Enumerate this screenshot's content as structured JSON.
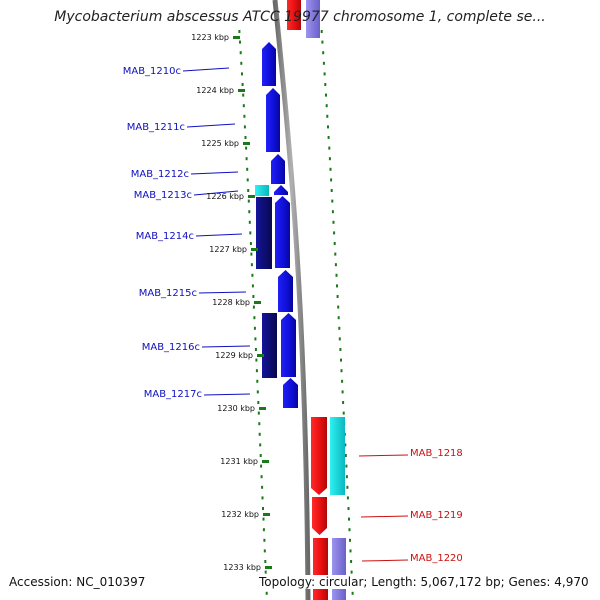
{
  "title": "Mycobacterium abscessus ATCC 19977 chromosome 1, complete se...",
  "footer": {
    "accession": "Accession: NC_010397",
    "stats": "Topology: circular; Length: 5,067,172 bp; Genes: 4,970"
  },
  "colors": {
    "reverse_cds": "#1010e0",
    "reverse_dark": "#0c0c70",
    "forward_cds": "#ee1111",
    "cyan": "#10e0e0",
    "lavender": "#8a80e0",
    "backbone": "#888888",
    "tick": "#1a7a1a",
    "reverse_label": "#1010c0",
    "forward_label": "#cc1010"
  },
  "ticks": [
    "1223 kbp",
    "1224 kbp",
    "1225 kbp",
    "1226 kbp",
    "1227 kbp",
    "1228 kbp",
    "1229 kbp",
    "1230 kbp",
    "1231 kbp",
    "1232 kbp",
    "1233 kbp"
  ],
  "genes": [
    {
      "name": "MAB_1210c",
      "strand": "reverse"
    },
    {
      "name": "MAB_1211c",
      "strand": "reverse"
    },
    {
      "name": "MAB_1212c",
      "strand": "reverse"
    },
    {
      "name": "MAB_1213c",
      "strand": "reverse"
    },
    {
      "name": "MAB_1214c",
      "strand": "reverse"
    },
    {
      "name": "MAB_1215c",
      "strand": "reverse"
    },
    {
      "name": "MAB_1216c",
      "strand": "reverse"
    },
    {
      "name": "MAB_1217c",
      "strand": "reverse"
    },
    {
      "name": "MAB_1218",
      "strand": "forward"
    },
    {
      "name": "MAB_1219",
      "strand": "forward"
    },
    {
      "name": "MAB_1220",
      "strand": "forward"
    }
  ]
}
